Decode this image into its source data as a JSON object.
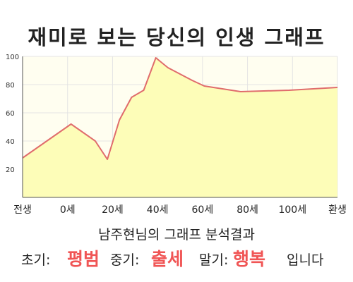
{
  "title": "재미로 보는 당신의 인생 그래프",
  "colors": {
    "plot_bg": "#fffef0",
    "area_fill": "#fdfdb8",
    "line": "#e06c6c",
    "grid": "#e4e4e4",
    "axis": "#555555",
    "highlight": "#f05555"
  },
  "chart_data": {
    "type": "area",
    "x": [
      -10,
      0,
      10,
      20,
      25,
      30,
      35,
      40,
      45,
      50,
      60,
      65,
      80,
      100,
      120
    ],
    "y": [
      28,
      40,
      52,
      40,
      27,
      55,
      71,
      76,
      99,
      92,
      83,
      79,
      75,
      76,
      78
    ],
    "x_tick_labels": [
      "전생",
      "0세",
      "20세",
      "40세",
      "60세",
      "80세",
      "100세",
      "환생"
    ],
    "y_ticks": [
      20,
      40,
      60,
      80,
      100
    ],
    "ylim": [
      0,
      100
    ],
    "grid": true
  },
  "summary": "남주현님의 그래프 분석결과",
  "result": {
    "early_label": "초기:",
    "early_value": "평범",
    "middle_label": "중기:",
    "middle_value": "출세",
    "late_label": "말기:",
    "late_value": "행복",
    "ending": "입니다"
  }
}
